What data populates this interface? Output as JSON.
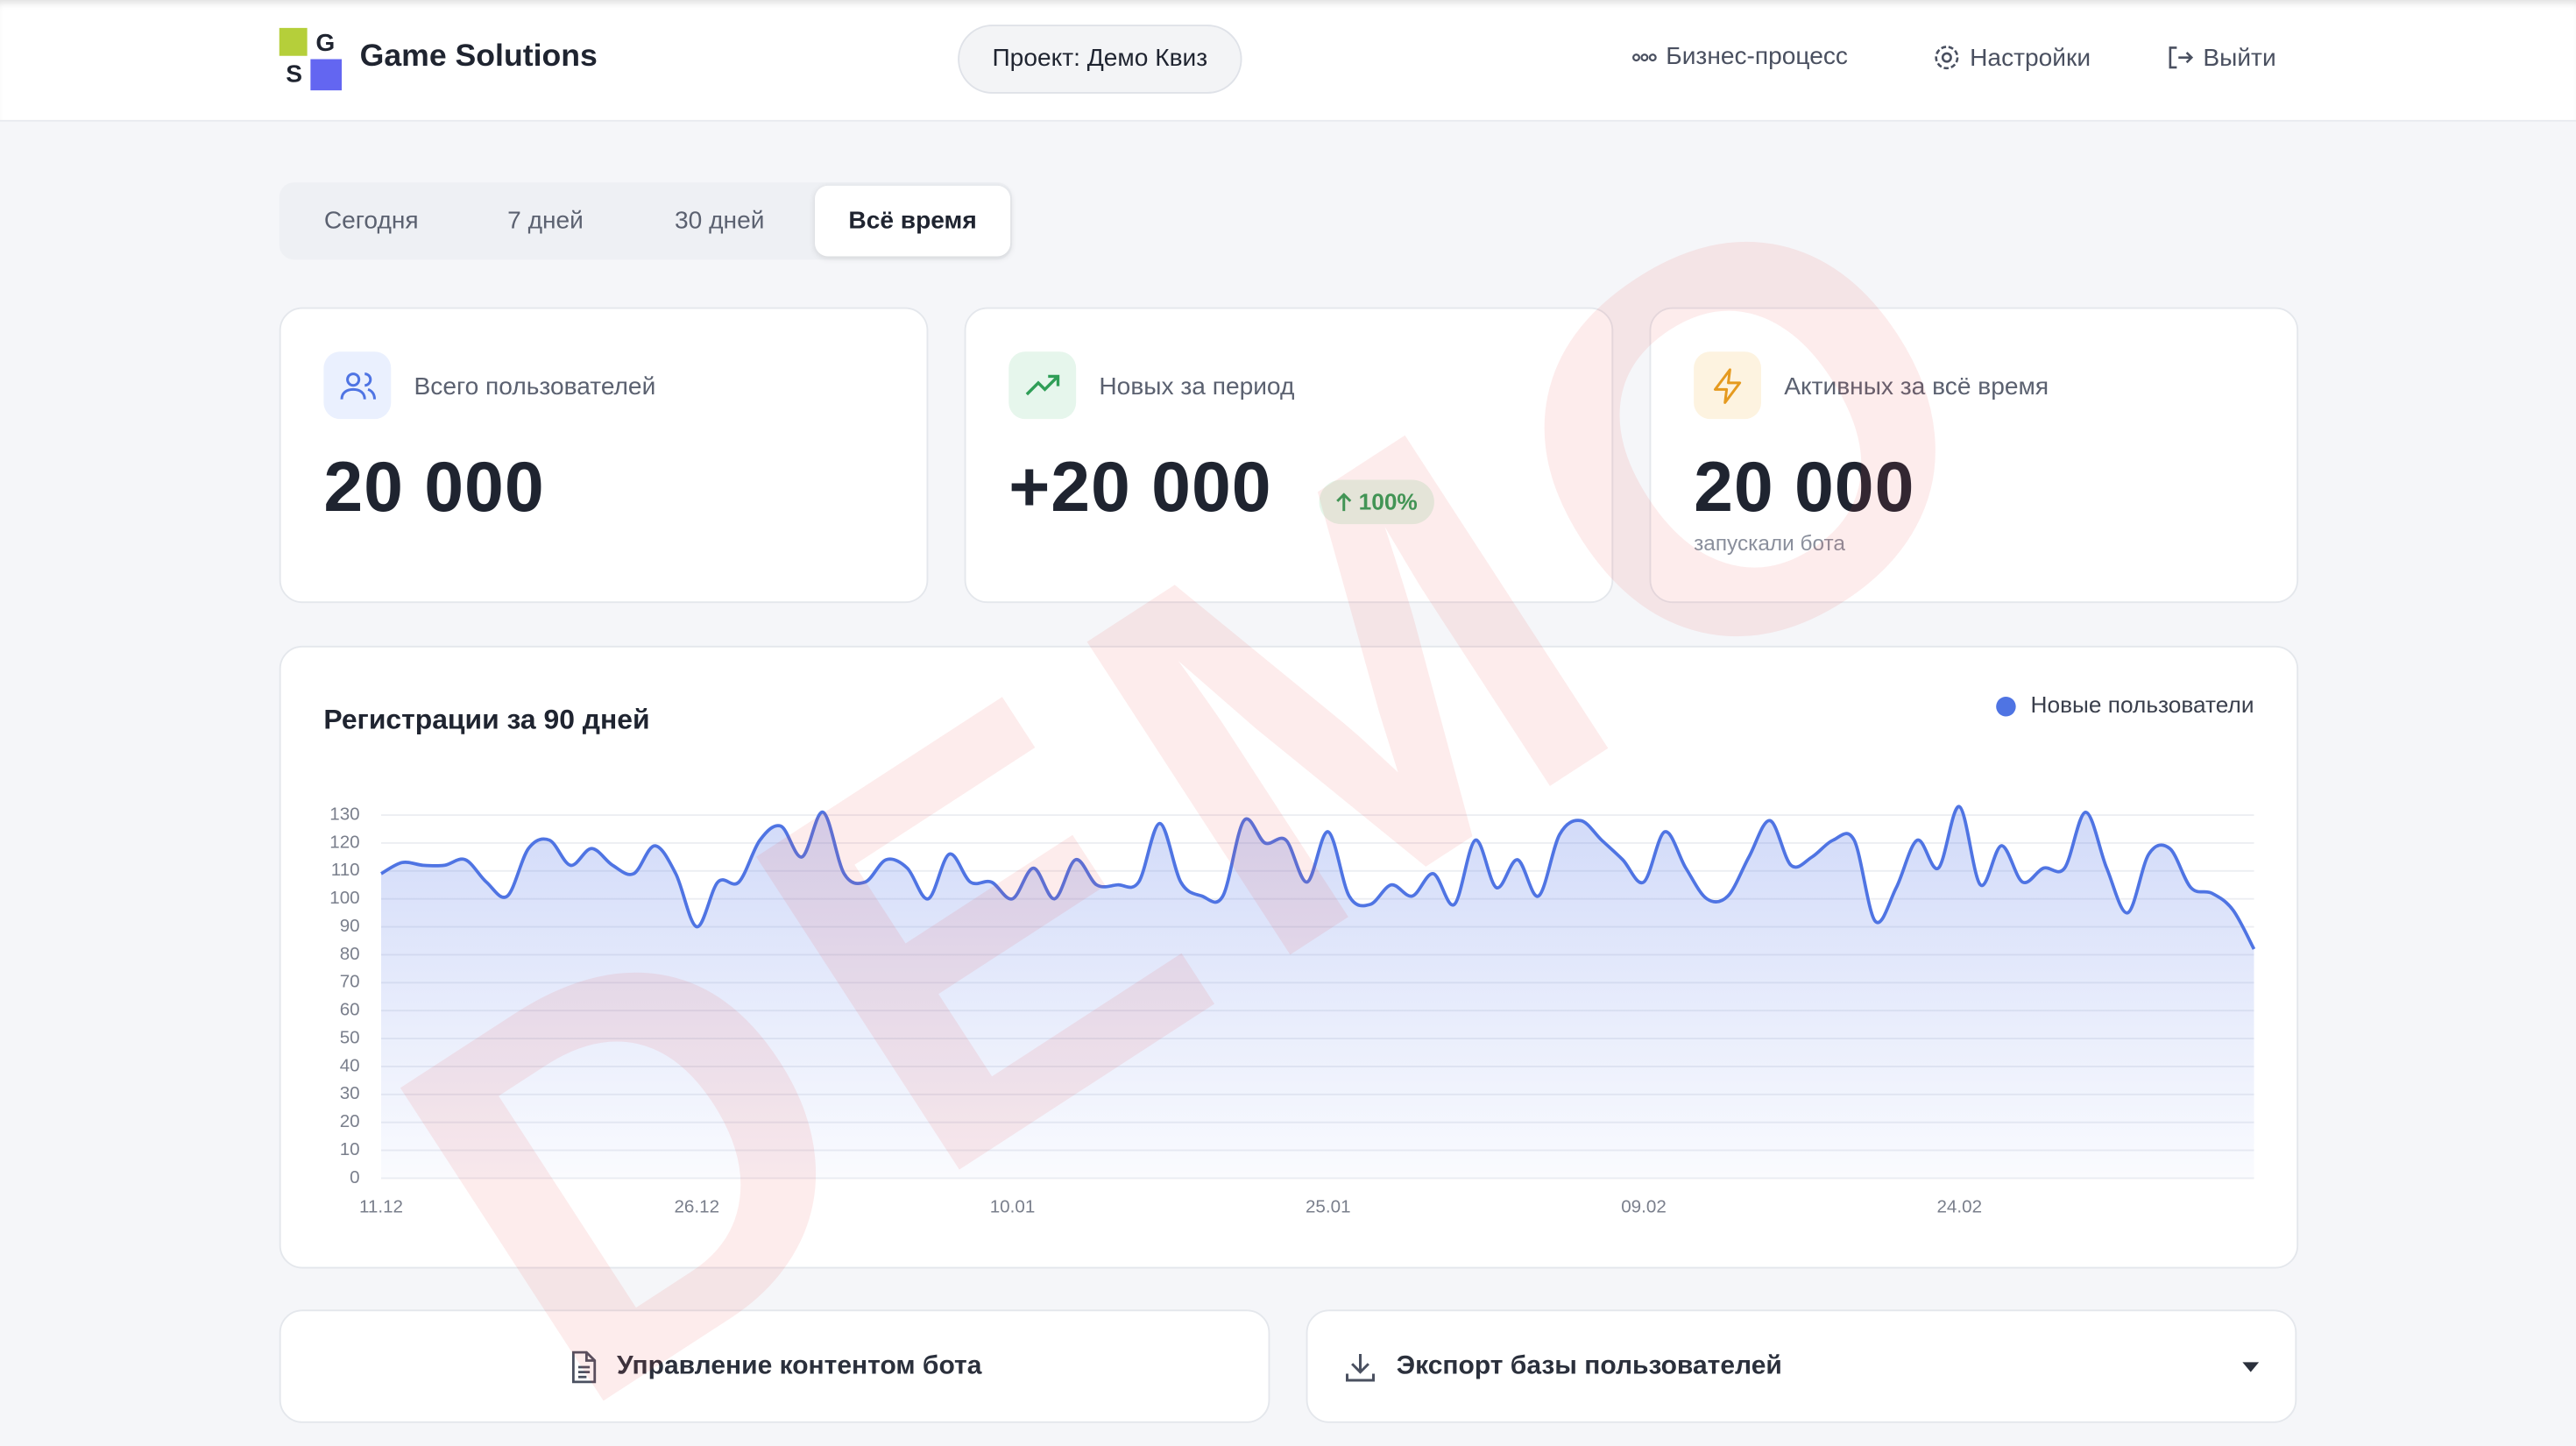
{
  "header": {
    "logo_letters": [
      "G",
      "S"
    ],
    "brand": "Game Solutions",
    "project": "Проект: Демо Квиз",
    "nav": [
      "Бизнес-процесс",
      "Настройки",
      "Выйти"
    ]
  },
  "tabs": {
    "items": [
      "Сегодня",
      "7 дней",
      "30 дней",
      "Всё время"
    ],
    "active": 3
  },
  "cards": [
    {
      "label": "Всего пользователей",
      "value": "20 000"
    },
    {
      "label": "Новых за период",
      "value": "+20 000",
      "badge": "100%"
    },
    {
      "label": "Активных за всё время",
      "value": "20 000",
      "note": "запускали бота"
    }
  ],
  "chart_data": {
    "type": "line",
    "title": "Регистрации за 90 дней",
    "categories": [
      "11.12",
      null,
      null,
      null,
      null,
      null,
      null,
      null,
      null,
      null,
      null,
      null,
      null,
      null,
      null,
      "26.12",
      null,
      null,
      null,
      null,
      null,
      null,
      null,
      null,
      null,
      null,
      null,
      null,
      null,
      null,
      "10.01",
      null,
      null,
      null,
      null,
      null,
      null,
      null,
      null,
      null,
      null,
      null,
      null,
      null,
      null,
      "25.01",
      null,
      null,
      null,
      null,
      null,
      null,
      null,
      null,
      null,
      null,
      null,
      null,
      null,
      null,
      "09.02",
      null,
      null,
      null,
      null,
      null,
      null,
      null,
      null,
      null,
      null,
      null,
      null,
      null,
      null,
      "24.02",
      null,
      null,
      null,
      null,
      null,
      null,
      null,
      null,
      null,
      null,
      null,
      null,
      null,
      null
    ],
    "series": [
      {
        "name": "Новые пользователи",
        "color": "#4f74e3",
        "values": [
          109,
          113,
          112,
          112,
          114,
          106,
          101,
          118,
          121,
          112,
          118,
          112,
          109,
          119,
          109,
          90,
          106,
          106,
          121,
          126,
          115,
          131,
          109,
          106,
          114,
          111,
          100,
          116,
          106,
          106,
          100,
          111,
          100,
          114,
          105,
          105,
          106,
          127,
          106,
          101,
          101,
          128,
          120,
          121,
          106,
          124,
          101,
          98,
          105,
          101,
          109,
          98,
          121,
          104,
          114,
          101,
          123,
          128,
          121,
          114,
          106,
          124,
          111,
          100,
          101,
          115,
          128,
          112,
          115,
          121,
          121,
          92,
          104,
          121,
          111,
          133,
          105,
          119,
          106,
          111,
          111,
          131,
          111,
          95,
          116,
          118,
          104,
          102,
          96,
          82
        ]
      }
    ],
    "ylim": [
      0,
      130
    ],
    "yticks": [
      0,
      10,
      20,
      30,
      40,
      50,
      60,
      70,
      80,
      90,
      100,
      110,
      120,
      130
    ],
    "grid": true,
    "legend": "top-right"
  },
  "actions": [
    "Управление контентом бота",
    "Экспорт базы пользователей"
  ],
  "watermark": "DEMO"
}
